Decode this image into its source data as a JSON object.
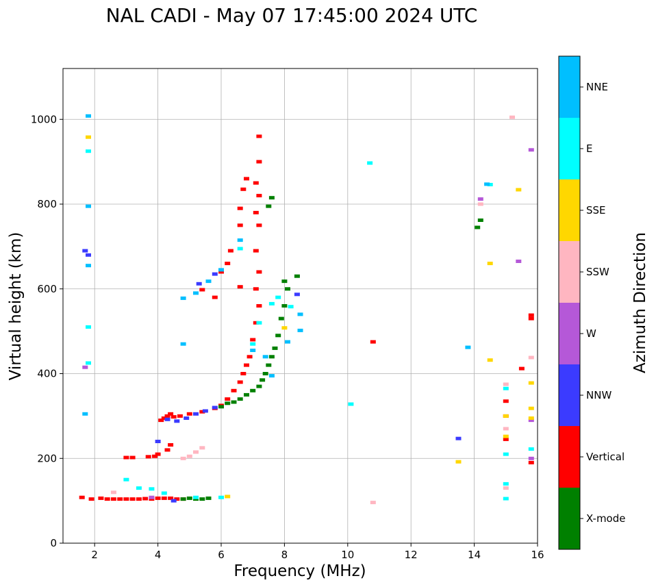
{
  "chart_data": {
    "type": "scatter",
    "title": "NAL CADI - May 07 17:45:00 2024 UTC",
    "xlabel": "Frequency (MHz)",
    "ylabel": "Virtual height (km)",
    "xlim": [
      1,
      16
    ],
    "ylim": [
      0,
      1120
    ],
    "xticks": [
      2,
      4,
      6,
      8,
      10,
      12,
      14,
      16
    ],
    "yticks": [
      0,
      200,
      400,
      600,
      800,
      1000
    ],
    "grid": true,
    "colorbar": {
      "label": "Azimuth Direction",
      "categories": [
        {
          "name": "X-mode",
          "color": "#008000"
        },
        {
          "name": "Vertical",
          "color": "#ff0000"
        },
        {
          "name": "NNW",
          "color": "#3b3bff"
        },
        {
          "name": "W",
          "color": "#b558d8"
        },
        {
          "name": "SSW",
          "color": "#ffb6c1"
        },
        {
          "name": "SSE",
          "color": "#ffd700"
        },
        {
          "name": "E",
          "color": "#00ffff"
        },
        {
          "name": "NNE",
          "color": "#00bfff"
        }
      ]
    },
    "series": [
      {
        "name": "Vertical",
        "color": "#ff0000",
        "points": [
          [
            1.6,
            108
          ],
          [
            1.9,
            104
          ],
          [
            2.2,
            106
          ],
          [
            2.4,
            104
          ],
          [
            2.6,
            104
          ],
          [
            2.8,
            104
          ],
          [
            3.0,
            104
          ],
          [
            3.2,
            104
          ],
          [
            3.4,
            104
          ],
          [
            3.6,
            105
          ],
          [
            3.8,
            104
          ],
          [
            4.0,
            106
          ],
          [
            4.2,
            106
          ],
          [
            4.4,
            106
          ],
          [
            4.6,
            104
          ],
          [
            4.8,
            104
          ],
          [
            3.0,
            202
          ],
          [
            3.2,
            202
          ],
          [
            3.7,
            204
          ],
          [
            3.9,
            205
          ],
          [
            4.0,
            210
          ],
          [
            4.3,
            220
          ],
          [
            4.4,
            232
          ],
          [
            4.1,
            290
          ],
          [
            4.2,
            295
          ],
          [
            4.3,
            300
          ],
          [
            4.4,
            305
          ],
          [
            4.5,
            298
          ],
          [
            4.7,
            300
          ],
          [
            5.0,
            305
          ],
          [
            5.4,
            310
          ],
          [
            5.8,
            318
          ],
          [
            6.0,
            325
          ],
          [
            6.2,
            340
          ],
          [
            6.4,
            360
          ],
          [
            6.6,
            380
          ],
          [
            6.7,
            400
          ],
          [
            6.8,
            420
          ],
          [
            6.9,
            440
          ],
          [
            7.0,
            480
          ],
          [
            7.1,
            520
          ],
          [
            7.2,
            560
          ],
          [
            7.1,
            600
          ],
          [
            7.2,
            640
          ],
          [
            7.1,
            690
          ],
          [
            7.2,
            750
          ],
          [
            7.1,
            780
          ],
          [
            7.2,
            820
          ],
          [
            7.1,
            850
          ],
          [
            7.2,
            900
          ],
          [
            7.2,
            960
          ],
          [
            6.0,
            640
          ],
          [
            6.2,
            660
          ],
          [
            6.3,
            690
          ],
          [
            6.6,
            750
          ],
          [
            6.6,
            790
          ],
          [
            6.7,
            835
          ],
          [
            6.8,
            860
          ],
          [
            6.6,
            605
          ],
          [
            5.4,
            598
          ],
          [
            5.8,
            580
          ],
          [
            15.0,
            300
          ],
          [
            15.0,
            245
          ],
          [
            15.0,
            335
          ],
          [
            15.5,
            412
          ],
          [
            15.8,
            530
          ],
          [
            15.8,
            538
          ],
          [
            15.8,
            190
          ],
          [
            10.8,
            475
          ]
        ]
      },
      {
        "name": "X-mode",
        "color": "#008000",
        "points": [
          [
            4.8,
            104
          ],
          [
            5.0,
            106
          ],
          [
            5.2,
            104
          ],
          [
            5.4,
            104
          ],
          [
            5.6,
            106
          ],
          [
            6.0,
            322
          ],
          [
            6.2,
            330
          ],
          [
            6.4,
            333
          ],
          [
            6.6,
            340
          ],
          [
            6.8,
            350
          ],
          [
            7.0,
            360
          ],
          [
            7.2,
            370
          ],
          [
            7.3,
            385
          ],
          [
            7.4,
            400
          ],
          [
            7.5,
            420
          ],
          [
            7.6,
            440
          ],
          [
            7.7,
            460
          ],
          [
            7.8,
            490
          ],
          [
            7.9,
            530
          ],
          [
            8.0,
            560
          ],
          [
            8.1,
            600
          ],
          [
            8.0,
            618
          ],
          [
            8.4,
            630
          ],
          [
            14.1,
            745
          ],
          [
            14.2,
            762
          ],
          [
            7.5,
            795
          ],
          [
            7.6,
            815
          ]
        ]
      },
      {
        "name": "NNW",
        "color": "#3b3bff",
        "points": [
          [
            4.3,
            292
          ],
          [
            4.6,
            288
          ],
          [
            4.9,
            295
          ],
          [
            5.2,
            305
          ],
          [
            5.5,
            312
          ],
          [
            5.8,
            320
          ],
          [
            4.0,
            240
          ],
          [
            4.5,
            100
          ],
          [
            5.3,
            612
          ],
          [
            5.8,
            635
          ],
          [
            8.4,
            587
          ],
          [
            13.5,
            247
          ],
          [
            1.7,
            690
          ],
          [
            1.8,
            680
          ]
        ]
      },
      {
        "name": "W",
        "color": "#b558d8",
        "points": [
          [
            1.7,
            415
          ],
          [
            15.4,
            665
          ],
          [
            15.8,
            928
          ],
          [
            15.8,
            290
          ],
          [
            15.8,
            200
          ],
          [
            14.2,
            812
          ],
          [
            3.8,
            108
          ]
        ]
      },
      {
        "name": "SSW",
        "color": "#ffb6c1",
        "points": [
          [
            4.8,
            200
          ],
          [
            5.0,
            205
          ],
          [
            5.2,
            215
          ],
          [
            5.4,
            225
          ],
          [
            2.6,
            120
          ],
          [
            15.0,
            375
          ],
          [
            15.0,
            270
          ],
          [
            15.0,
            130
          ],
          [
            15.2,
            1005
          ],
          [
            14.2,
            800
          ],
          [
            15.8,
            438
          ],
          [
            10.8,
            96
          ]
        ]
      },
      {
        "name": "SSE",
        "color": "#ffd700",
        "points": [
          [
            6.2,
            110
          ],
          [
            8.0,
            508
          ],
          [
            14.5,
            432
          ],
          [
            14.5,
            660
          ],
          [
            15.4,
            834
          ],
          [
            13.5,
            192
          ],
          [
            15.8,
            378
          ],
          [
            15.8,
            318
          ],
          [
            15.8,
            295
          ],
          [
            15.0,
            300
          ],
          [
            15.0,
            252
          ],
          [
            1.8,
            958
          ]
        ]
      },
      {
        "name": "E",
        "color": "#00ffff",
        "points": [
          [
            3.0,
            150
          ],
          [
            3.4,
            130
          ],
          [
            3.8,
            128
          ],
          [
            4.2,
            118
          ],
          [
            5.2,
            108
          ],
          [
            6.0,
            108
          ],
          [
            7.0,
            470
          ],
          [
            7.2,
            520
          ],
          [
            7.6,
            565
          ],
          [
            7.8,
            580
          ],
          [
            8.2,
            558
          ],
          [
            6.6,
            695
          ],
          [
            10.1,
            328
          ],
          [
            10.7,
            897
          ],
          [
            14.5,
            846
          ],
          [
            15.0,
            105
          ],
          [
            15.0,
            140
          ],
          [
            15.0,
            210
          ],
          [
            15.0,
            365
          ],
          [
            15.8,
            222
          ],
          [
            1.8,
            925
          ],
          [
            1.8,
            510
          ],
          [
            1.8,
            425
          ]
        ]
      },
      {
        "name": "NNE",
        "color": "#00bfff",
        "points": [
          [
            4.8,
            578
          ],
          [
            5.2,
            590
          ],
          [
            5.6,
            618
          ],
          [
            6.0,
            645
          ],
          [
            6.6,
            715
          ],
          [
            7.0,
            455
          ],
          [
            7.4,
            440
          ],
          [
            7.6,
            395
          ],
          [
            8.1,
            475
          ],
          [
            8.5,
            540
          ],
          [
            8.5,
            502
          ],
          [
            13.8,
            462
          ],
          [
            14.4,
            847
          ],
          [
            4.8,
            470
          ],
          [
            1.7,
            305
          ],
          [
            1.8,
            1008
          ],
          [
            1.8,
            795
          ],
          [
            1.8,
            655
          ]
        ]
      }
    ]
  }
}
